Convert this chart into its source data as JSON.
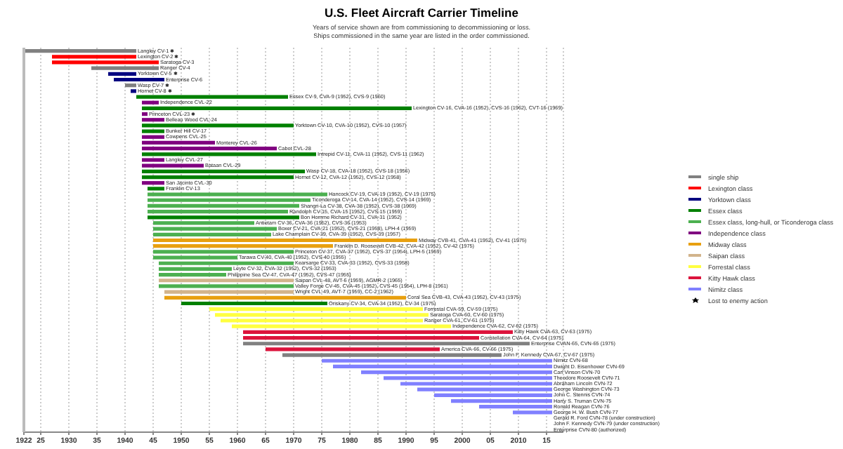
{
  "chart_data": {
    "type": "bar",
    "orientation": "horizontal",
    "title": "U.S. Fleet Aircraft Carrier Timeline",
    "subtitle": "Years of service shown are from commissioning to decommissioning or loss.\nShips commissioned in the same year are listed in the order commissioned.",
    "categories": [
      "Langley CV-1 ✱",
      "Lexington CV-2 ✱",
      "Saratoga CV-3",
      "Ranger CV-4",
      "Yorktown CV-5 ✱",
      "Enterprise CV-6",
      "Wasp CV-7 ✱",
      "Hornet CV-8 ✱",
      "Essex CV-9, CVA-9 (1952), CVS-9 (1960)",
      "Independence CVL-22",
      "Lexington CV-16, CVA-16 (1952), CVS-16 (1962), CVT-16 (1969)",
      "Princeton CVL-23 ✱",
      "Belleau Wood CVL-24",
      "Yorktown CV-10, CVA-10 (1952), CVS-10 (1957)",
      "Bunker Hill CV-17",
      "Cowpens CVL-25",
      "Monterey CVL-26",
      "Cabot CVL-28",
      "Intrepid CV-11, CVA-11 (1952), CVS-11 (1962)",
      "Langley CVL-27",
      "Bataan CVL-29",
      "Wasp CV-18, CVA-18 (1952), CVS-18 (1956)",
      "Hornet CV-12, CVA-12 (1952), CVS-12 (1958)",
      "San Jacinto CVL-30",
      "Franklin CV-13",
      "Hancock CV-19, CVA-19 (1952), CV-19 (1975)",
      "Ticonderoga CV-14, CVA-14 (1952), CVS-14 (1969)",
      "Shangri-La CV-38, CVA-38 (1952), CVS-38 (1969)",
      "Randolph CV-15, CVA-15 (1952), CVS-15 (1959)",
      "Bon Homme Richard CV-31, CVA-31 (1952)",
      "Antietam CV-36, CVA-36 (1952), CVS-36 (1953)",
      "Boxer CV-21, CVA-21 (1952), CVS-21 (1958), LPH-4 (1959)",
      "Lake Champlain CV-39, CVA-39 (1952), CVS-39 (1957)",
      "Midway CVB-41, CVA-41 (1952), CV-41 (1975)",
      "Franklin D. Roosevelt CVB-42, CVA-42 (1952), CV-42 (1975)",
      "Princeton CV-37, CVA-37 (1952), CVS-37 (1954), LPH-5 (1959)",
      "Tarawa CV-40, CVA-40 (1952), CVS-40 (1955)",
      "Kearsarge CV-33, CVA-33 (1952), CVS-33 (1958)",
      "Leyte CV-32, CVA-32 (1952), CVS-32 (1953)",
      "Philippine Sea CV-47, CVA-47 (1952), CVS-47 (1955)",
      "Saipan CVL-48, AVT-6 (1959), AGMR-2 (1965)",
      "Valley Forge CV-45, CVA-45 (1952), CVS-45 (1954), LPH-8 (1961)",
      "Wright CVL-49, AVT-7 (1959), CC-2 (1962)",
      "Coral Sea CVB-43, CVA-43 (1952), CV-43 (1975)",
      "Oriskany CV-34, CVA-34 (1952), CV-34 (1975)",
      "Forrestal CVA-59, CV-59 (1975)",
      "Saratoga CVA-60, CV-60 (1975)",
      "Ranger CVA-61, CV-61 (1975)",
      "Independence CVA-62, CV-62 (1975)",
      "Kitty Hawk CVA-63, CV-63 (1975)",
      "Constellation CVA-64, CV-64 (1975)",
      "Enterprise CVAN-65, CVN-65 (1975)",
      "America CVA-66, CV-66 (1975)",
      "John F. Kennedy CVA-67, CV-67 (1975)",
      "Nimitz CVN-68",
      "Dwight D. Eisenhower CVN-69",
      "Carl Vinson CVN-70",
      "Theodore Roosevelt CVN-71",
      "Abraham Lincoln CVN-72",
      "George Washington CVN-73",
      "John C. Stennis CVN-74",
      "Harry S. Truman CVN-75",
      "Ronald Reagan CVN-76",
      "George H. W. Bush CVN-77",
      "Gerald R. Ford CVN-78 (under construction)",
      "John F. Kennedy CVN-79 (under construction)",
      "Enterprise CVN-80 (authorized)"
    ],
    "series": [
      {
        "name": "single ship",
        "color": "#808080",
        "base": [
          1922,
          null,
          null,
          1934,
          null,
          null,
          1940,
          null,
          null,
          null,
          null,
          null,
          null,
          null,
          null,
          null,
          null,
          null,
          null,
          null,
          null,
          null,
          null,
          null,
          null,
          null,
          null,
          null,
          null,
          null,
          null,
          null,
          null,
          null,
          null,
          null,
          null,
          null,
          null,
          null,
          null,
          null,
          null,
          null,
          null,
          null,
          null,
          null,
          null,
          null,
          null,
          1961,
          null,
          1968,
          null,
          null,
          null,
          null,
          null,
          null,
          null,
          null,
          null,
          null,
          null,
          null,
          null
        ],
        "values": [
          20,
          null,
          null,
          12,
          null,
          null,
          2,
          null,
          null,
          null,
          null,
          null,
          null,
          null,
          null,
          null,
          null,
          null,
          null,
          null,
          null,
          null,
          null,
          null,
          null,
          null,
          null,
          null,
          null,
          null,
          null,
          null,
          null,
          null,
          null,
          null,
          null,
          null,
          null,
          null,
          null,
          null,
          null,
          null,
          null,
          null,
          null,
          null,
          null,
          null,
          null,
          51,
          null,
          39,
          null,
          null,
          null,
          null,
          null,
          null,
          null,
          null,
          null,
          null,
          null,
          null,
          null
        ]
      },
      {
        "name": "Lexington class",
        "color": "#ff0000",
        "base": [
          null,
          1927,
          1927,
          null,
          null,
          null,
          null,
          null,
          null,
          null,
          null,
          null,
          null,
          null,
          null,
          null,
          null,
          null,
          null,
          null,
          null,
          null,
          null,
          null,
          null,
          null,
          null,
          null,
          null,
          null,
          null,
          null,
          null,
          null,
          null,
          null,
          null,
          null,
          null,
          null,
          null,
          null,
          null,
          null,
          null,
          null,
          null,
          null,
          null,
          null,
          null,
          null,
          null,
          null,
          null,
          null,
          null,
          null,
          null,
          null,
          null,
          null,
          null,
          null,
          null,
          null,
          null
        ],
        "values": [
          null,
          15,
          19,
          null,
          null,
          null,
          null,
          null,
          null,
          null,
          null,
          null,
          null,
          null,
          null,
          null,
          null,
          null,
          null,
          null,
          null,
          null,
          null,
          null,
          null,
          null,
          null,
          null,
          null,
          null,
          null,
          null,
          null,
          null,
          null,
          null,
          null,
          null,
          null,
          null,
          null,
          null,
          null,
          null,
          null,
          null,
          null,
          null,
          null,
          null,
          null,
          null,
          null,
          null,
          null,
          null,
          null,
          null,
          null,
          null,
          null,
          null,
          null,
          null,
          null,
          null,
          null
        ]
      },
      {
        "name": "Yorktown class",
        "color": "#000080",
        "base": [
          null,
          null,
          null,
          null,
          1937,
          1938,
          null,
          1941,
          null,
          null,
          null,
          null,
          null,
          null,
          null,
          null,
          null,
          null,
          null,
          null,
          null,
          null,
          null,
          null,
          null,
          null,
          null,
          null,
          null,
          null,
          null,
          null,
          null,
          null,
          null,
          null,
          null,
          null,
          null,
          null,
          null,
          null,
          null,
          null,
          null,
          null,
          null,
          null,
          null,
          null,
          null,
          null,
          null,
          null,
          null,
          null,
          null,
          null,
          null,
          null,
          null,
          null,
          null,
          null,
          null,
          null,
          null
        ],
        "values": [
          null,
          null,
          null,
          null,
          5,
          9,
          null,
          1,
          null,
          null,
          null,
          null,
          null,
          null,
          null,
          null,
          null,
          null,
          null,
          null,
          null,
          null,
          null,
          null,
          null,
          null,
          null,
          null,
          null,
          null,
          null,
          null,
          null,
          null,
          null,
          null,
          null,
          null,
          null,
          null,
          null,
          null,
          null,
          null,
          null,
          null,
          null,
          null,
          null,
          null,
          null,
          null,
          null,
          null,
          null,
          null,
          null,
          null,
          null,
          null,
          null,
          null,
          null,
          null,
          null,
          null,
          null
        ]
      },
      {
        "name": "Essex class",
        "color": "#008000",
        "base": [
          null,
          null,
          null,
          null,
          null,
          null,
          null,
          null,
          1942,
          null,
          1943,
          null,
          null,
          1943,
          1943,
          null,
          null,
          null,
          1943,
          null,
          null,
          1943,
          1943,
          null,
          1944,
          null,
          null,
          null,
          null,
          1944,
          null,
          null,
          null,
          null,
          null,
          null,
          null,
          null,
          null,
          null,
          null,
          null,
          null,
          null,
          1950,
          null,
          null,
          null,
          null,
          null,
          null,
          null,
          null,
          null,
          null,
          null,
          null,
          null,
          null,
          null,
          null,
          null,
          null,
          null,
          null,
          null,
          null
        ],
        "values": [
          null,
          null,
          null,
          null,
          null,
          null,
          null,
          null,
          27,
          null,
          48,
          null,
          null,
          27,
          4,
          null,
          null,
          null,
          31,
          null,
          null,
          29,
          27,
          null,
          3,
          null,
          null,
          null,
          null,
          27,
          null,
          null,
          null,
          null,
          null,
          null,
          null,
          null,
          null,
          null,
          null,
          null,
          null,
          null,
          26,
          null,
          null,
          null,
          null,
          null,
          null,
          null,
          null,
          null,
          null,
          null,
          null,
          null,
          null,
          null,
          null,
          null,
          null,
          null,
          null,
          null,
          null
        ]
      },
      {
        "name": "Essex class, long-hull, or Ticonderoga class",
        "color": "#4cb050",
        "base": [
          null,
          null,
          null,
          null,
          null,
          null,
          null,
          null,
          null,
          null,
          null,
          null,
          null,
          null,
          null,
          null,
          null,
          null,
          null,
          null,
          null,
          null,
          null,
          null,
          null,
          1944,
          1944,
          1944,
          1944,
          null,
          1945,
          1945,
          1945,
          null,
          null,
          1945,
          1945,
          1946,
          1946,
          1946,
          null,
          1946,
          null,
          null,
          null,
          null,
          null,
          null,
          null,
          null,
          null,
          null,
          null,
          null,
          null,
          null,
          null,
          null,
          null,
          null,
          null,
          null,
          null,
          null,
          null,
          null,
          null
        ],
        "values": [
          null,
          null,
          null,
          null,
          null,
          null,
          null,
          null,
          null,
          null,
          null,
          null,
          null,
          null,
          null,
          null,
          null,
          null,
          null,
          null,
          null,
          null,
          null,
          null,
          null,
          32,
          29,
          27,
          25,
          null,
          18,
          22,
          21,
          null,
          null,
          25,
          15,
          24,
          13,
          12,
          null,
          24,
          null,
          null,
          null,
          null,
          null,
          null,
          null,
          null,
          null,
          null,
          null,
          null,
          null,
          null,
          null,
          null,
          null,
          null,
          null,
          null,
          null,
          null,
          null,
          null,
          null
        ]
      },
      {
        "name": "Independence class",
        "color": "#800080",
        "base": [
          null,
          null,
          null,
          null,
          null,
          null,
          null,
          null,
          null,
          1943,
          null,
          1943,
          1943,
          null,
          null,
          1943,
          1943,
          1943,
          null,
          1943,
          1943,
          null,
          null,
          1943,
          null,
          null,
          null,
          null,
          null,
          null,
          null,
          null,
          null,
          null,
          null,
          null,
          null,
          null,
          null,
          null,
          null,
          null,
          null,
          null,
          null,
          null,
          null,
          null,
          null,
          null,
          null,
          null,
          null,
          null,
          null,
          null,
          null,
          null,
          null,
          null,
          null,
          null,
          null,
          null,
          null,
          null,
          null
        ],
        "values": [
          null,
          null,
          null,
          null,
          null,
          null,
          null,
          null,
          null,
          3,
          null,
          1,
          4,
          null,
          null,
          4,
          13,
          24,
          null,
          4,
          11,
          null,
          null,
          4,
          null,
          null,
          null,
          null,
          null,
          null,
          null,
          null,
          null,
          null,
          null,
          null,
          null,
          null,
          null,
          null,
          null,
          null,
          null,
          null,
          null,
          null,
          null,
          null,
          null,
          null,
          null,
          null,
          null,
          null,
          null,
          null,
          null,
          null,
          null,
          null,
          null,
          null,
          null,
          null,
          null,
          null,
          null
        ]
      },
      {
        "name": "Midway class",
        "color": "#e8a010",
        "base": [
          null,
          null,
          null,
          null,
          null,
          null,
          null,
          null,
          null,
          null,
          null,
          null,
          null,
          null,
          null,
          null,
          null,
          null,
          null,
          null,
          null,
          null,
          null,
          null,
          null,
          null,
          null,
          null,
          null,
          null,
          null,
          null,
          null,
          1945,
          1945,
          null,
          null,
          null,
          null,
          null,
          null,
          null,
          null,
          1947,
          null,
          null,
          null,
          null,
          null,
          null,
          null,
          null,
          null,
          null,
          null,
          null,
          null,
          null,
          null,
          null,
          null,
          null,
          null,
          null,
          null,
          null,
          null
        ],
        "values": [
          null,
          null,
          null,
          null,
          null,
          null,
          null,
          null,
          null,
          null,
          null,
          null,
          null,
          null,
          null,
          null,
          null,
          null,
          null,
          null,
          null,
          null,
          null,
          null,
          null,
          null,
          null,
          null,
          null,
          null,
          null,
          null,
          null,
          47,
          32,
          null,
          null,
          null,
          null,
          null,
          null,
          null,
          null,
          43,
          null,
          null,
          null,
          null,
          null,
          null,
          null,
          null,
          null,
          null,
          null,
          null,
          null,
          null,
          null,
          null,
          null,
          null,
          null,
          null,
          null,
          null,
          null
        ]
      },
      {
        "name": "Saipan class",
        "color": "#d2b48c",
        "base": [
          null,
          null,
          null,
          null,
          null,
          null,
          null,
          null,
          null,
          null,
          null,
          null,
          null,
          null,
          null,
          null,
          null,
          null,
          null,
          null,
          null,
          null,
          null,
          null,
          null,
          null,
          null,
          null,
          null,
          null,
          null,
          null,
          null,
          null,
          null,
          null,
          null,
          null,
          null,
          null,
          1946,
          null,
          1947,
          null,
          null,
          null,
          null,
          null,
          null,
          null,
          null,
          null,
          null,
          null,
          null,
          null,
          null,
          null,
          null,
          null,
          null,
          null,
          null,
          null,
          null,
          null,
          null
        ],
        "values": [
          null,
          null,
          null,
          null,
          null,
          null,
          null,
          null,
          null,
          null,
          null,
          null,
          null,
          null,
          null,
          null,
          null,
          null,
          null,
          null,
          null,
          null,
          null,
          null,
          null,
          null,
          null,
          null,
          null,
          null,
          null,
          null,
          null,
          null,
          null,
          null,
          null,
          null,
          null,
          null,
          24,
          null,
          23,
          null,
          null,
          null,
          null,
          null,
          null,
          null,
          null,
          null,
          null,
          null,
          null,
          null,
          null,
          null,
          null,
          null,
          null,
          null,
          null,
          null,
          null,
          null,
          null
        ]
      },
      {
        "name": "Forrestal class",
        "color": "#ffff40",
        "base": [
          null,
          null,
          null,
          null,
          null,
          null,
          null,
          null,
          null,
          null,
          null,
          null,
          null,
          null,
          null,
          null,
          null,
          null,
          null,
          null,
          null,
          null,
          null,
          null,
          null,
          null,
          null,
          null,
          null,
          null,
          null,
          null,
          null,
          null,
          null,
          null,
          null,
          null,
          null,
          null,
          null,
          null,
          null,
          null,
          null,
          1955,
          1956,
          1957,
          1959,
          null,
          null,
          null,
          null,
          null,
          null,
          null,
          null,
          null,
          null,
          null,
          null,
          null,
          null,
          null,
          null,
          null,
          null
        ],
        "values": [
          null,
          null,
          null,
          null,
          null,
          null,
          null,
          null,
          null,
          null,
          null,
          null,
          null,
          null,
          null,
          null,
          null,
          null,
          null,
          null,
          null,
          null,
          null,
          null,
          null,
          null,
          null,
          null,
          null,
          null,
          null,
          null,
          null,
          null,
          null,
          null,
          null,
          null,
          null,
          null,
          null,
          null,
          null,
          null,
          null,
          38,
          38,
          36,
          39,
          null,
          null,
          null,
          null,
          null,
          null,
          null,
          null,
          null,
          null,
          null,
          null,
          null,
          null,
          null,
          null,
          null,
          null
        ]
      },
      {
        "name": "Kitty Hawk class",
        "color": "#dc143c",
        "base": [
          null,
          null,
          null,
          null,
          null,
          null,
          null,
          null,
          null,
          null,
          null,
          null,
          null,
          null,
          null,
          null,
          null,
          null,
          null,
          null,
          null,
          null,
          null,
          null,
          null,
          null,
          null,
          null,
          null,
          null,
          null,
          null,
          null,
          null,
          null,
          null,
          null,
          null,
          null,
          null,
          null,
          null,
          null,
          null,
          null,
          null,
          null,
          null,
          null,
          1961,
          1961,
          null,
          1965,
          null,
          null,
          null,
          null,
          null,
          null,
          null,
          null,
          null,
          null,
          null,
          null,
          null,
          null
        ],
        "values": [
          null,
          null,
          null,
          null,
          null,
          null,
          null,
          null,
          null,
          null,
          null,
          null,
          null,
          null,
          null,
          null,
          null,
          null,
          null,
          null,
          null,
          null,
          null,
          null,
          null,
          null,
          null,
          null,
          null,
          null,
          null,
          null,
          null,
          null,
          null,
          null,
          null,
          null,
          null,
          null,
          null,
          null,
          null,
          null,
          null,
          null,
          null,
          null,
          null,
          48,
          42,
          null,
          31,
          null,
          null,
          null,
          null,
          null,
          null,
          null,
          null,
          null,
          null,
          null,
          null,
          null,
          null
        ]
      },
      {
        "name": "Nimitz class",
        "color": "#8080ff",
        "base": [
          null,
          null,
          null,
          null,
          null,
          null,
          null,
          null,
          null,
          null,
          null,
          null,
          null,
          null,
          null,
          null,
          null,
          null,
          null,
          null,
          null,
          null,
          null,
          null,
          null,
          null,
          null,
          null,
          null,
          null,
          null,
          null,
          null,
          null,
          null,
          null,
          null,
          null,
          null,
          null,
          null,
          null,
          null,
          null,
          null,
          null,
          null,
          null,
          null,
          null,
          null,
          null,
          null,
          null,
          1975,
          1977,
          1982,
          1986,
          1989,
          1992,
          1995,
          1998,
          2003,
          2009,
          null,
          null,
          null
        ],
        "values": [
          null,
          null,
          null,
          null,
          null,
          null,
          null,
          null,
          null,
          null,
          null,
          null,
          null,
          null,
          null,
          null,
          null,
          null,
          null,
          null,
          null,
          null,
          null,
          null,
          null,
          null,
          null,
          null,
          null,
          null,
          null,
          null,
          null,
          null,
          null,
          null,
          null,
          null,
          null,
          null,
          null,
          null,
          null,
          null,
          null,
          null,
          null,
          null,
          null,
          null,
          null,
          null,
          null,
          null,
          41,
          39,
          34,
          30,
          27,
          24,
          21,
          18,
          13,
          7,
          null,
          null,
          null
        ]
      }
    ],
    "annotations": [
      "Lost to enemy action"
    ],
    "xlim": [
      1922,
      2018
    ],
    "xticks": [
      1922,
      {
        "value": 1925,
        "label": "25"
      },
      1930,
      {
        "value": 1935,
        "label": "35"
      },
      1940,
      {
        "value": 1945,
        "label": "45"
      },
      1950,
      {
        "value": 1955,
        "label": "55"
      },
      1960,
      {
        "value": 1965,
        "label": "65"
      },
      1970,
      {
        "value": 1975,
        "label": "75"
      },
      1980,
      {
        "value": 1985,
        "label": "85"
      },
      1990,
      {
        "value": 1995,
        "label": "95"
      },
      2000,
      {
        "value": 2005,
        "label": "05"
      },
      2010,
      {
        "value": 2015,
        "label": "15"
      }
    ],
    "grid": "x",
    "legend": "right"
  }
}
